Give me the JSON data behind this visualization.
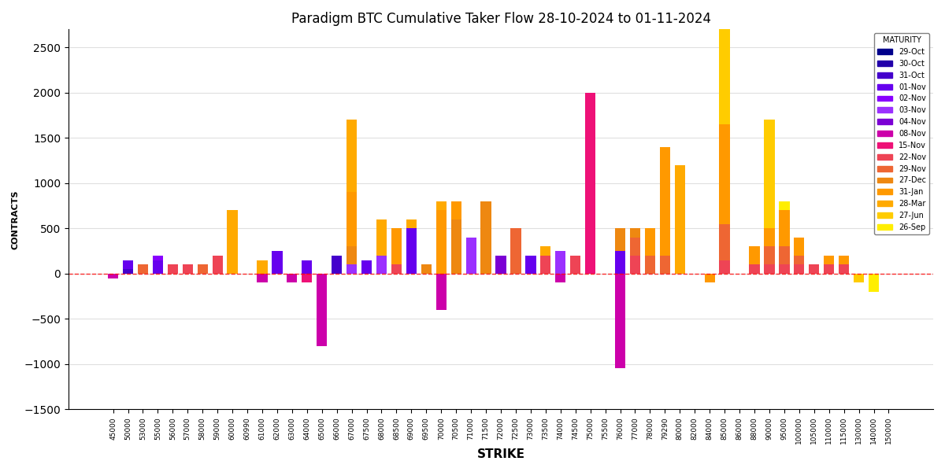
{
  "title": "Paradigm BTC Cumulative Taker Flow 28-10-2024 to 01-11-2024",
  "xlabel": "STRIKE",
  "ylabel": "CONTRACTS",
  "ylim": [
    -1500,
    2700
  ],
  "maturity_colors": {
    "29-Oct": "#00008B",
    "30-Oct": "#2200AA",
    "31-Oct": "#4400CC",
    "01-Nov": "#6600EE",
    "02-Nov": "#8800FF",
    "03-Nov": "#9B30FF",
    "04-Nov": "#7B00D4",
    "08-Nov": "#CC00AA",
    "15-Nov": "#EE1177",
    "22-Nov": "#EE4455",
    "29-Nov": "#EE6633",
    "27-Dec": "#EE8811",
    "31-Jan": "#FF9900",
    "28-Mar": "#FFAA00",
    "27-Jun": "#FFCC00",
    "26-Sep": "#FFEE00"
  },
  "strikes": [
    45000,
    50000,
    53000,
    55000,
    56000,
    57000,
    58000,
    59000,
    60000,
    60990,
    61000,
    62000,
    63000,
    64000,
    65000,
    66000,
    67000,
    67500,
    68000,
    68500,
    69000,
    69500,
    70000,
    70500,
    71000,
    71500,
    72000,
    72500,
    73000,
    73500,
    74000,
    74500,
    75000,
    75500,
    76000,
    77000,
    78000,
    79290,
    80000,
    82000,
    84000,
    85000,
    86000,
    88000,
    90000,
    95000,
    100000,
    105000,
    110000,
    115000,
    130000,
    140000,
    150000
  ],
  "bar_data": {
    "29-Oct": [
      0,
      0,
      0,
      0,
      0,
      0,
      0,
      0,
      0,
      0,
      0,
      0,
      0,
      0,
      0,
      0,
      0,
      0,
      0,
      0,
      0,
      0,
      0,
      0,
      0,
      0,
      0,
      0,
      0,
      0,
      0,
      0,
      0,
      0,
      0,
      0,
      0,
      0,
      0,
      0,
      0,
      0,
      0,
      0,
      0,
      0,
      0,
      0,
      0,
      0,
      0,
      0,
      0
    ],
    "30-Oct": [
      0,
      0,
      0,
      0,
      0,
      0,
      0,
      0,
      0,
      0,
      0,
      0,
      0,
      0,
      0,
      0,
      0,
      0,
      0,
      0,
      0,
      0,
      0,
      0,
      0,
      0,
      0,
      0,
      0,
      0,
      0,
      0,
      0,
      0,
      0,
      0,
      0,
      0,
      0,
      0,
      0,
      0,
      0,
      0,
      0,
      0,
      0,
      0,
      0,
      0,
      0,
      0,
      0
    ],
    "31-Oct": [
      0,
      50,
      0,
      0,
      0,
      0,
      0,
      0,
      0,
      0,
      0,
      0,
      0,
      0,
      0,
      200,
      0,
      0,
      0,
      0,
      0,
      0,
      0,
      0,
      0,
      0,
      0,
      0,
      0,
      0,
      0,
      0,
      0,
      0,
      0,
      0,
      0,
      0,
      0,
      0,
      0,
      0,
      0,
      0,
      0,
      0,
      0,
      0,
      0,
      0,
      0,
      0,
      0
    ],
    "01-Nov": [
      0,
      100,
      0,
      150,
      0,
      0,
      0,
      0,
      0,
      0,
      0,
      250,
      0,
      150,
      0,
      0,
      0,
      150,
      0,
      0,
      500,
      0,
      0,
      0,
      0,
      0,
      0,
      0,
      200,
      0,
      0,
      0,
      0,
      0,
      250,
      0,
      0,
      0,
      0,
      0,
      0,
      0,
      0,
      0,
      0,
      0,
      0,
      0,
      0,
      0,
      0,
      0,
      0
    ],
    "02-Nov": [
      0,
      0,
      0,
      50,
      0,
      0,
      0,
      0,
      0,
      0,
      0,
      0,
      0,
      0,
      0,
      0,
      0,
      0,
      0,
      0,
      0,
      0,
      0,
      0,
      0,
      0,
      0,
      0,
      0,
      0,
      0,
      0,
      0,
      0,
      0,
      0,
      0,
      0,
      0,
      0,
      0,
      0,
      0,
      0,
      0,
      0,
      0,
      0,
      0,
      0,
      0,
      0,
      0
    ],
    "03-Nov": [
      0,
      0,
      0,
      0,
      0,
      0,
      0,
      0,
      0,
      0,
      0,
      0,
      0,
      0,
      0,
      0,
      100,
      0,
      200,
      0,
      0,
      0,
      0,
      0,
      400,
      0,
      0,
      0,
      0,
      0,
      250,
      0,
      0,
      0,
      0,
      0,
      0,
      0,
      0,
      0,
      0,
      0,
      0,
      0,
      0,
      0,
      0,
      0,
      0,
      0,
      0,
      0,
      0
    ],
    "04-Nov": [
      0,
      0,
      0,
      0,
      0,
      0,
      0,
      0,
      0,
      0,
      0,
      0,
      0,
      0,
      0,
      0,
      0,
      0,
      0,
      0,
      0,
      0,
      0,
      0,
      0,
      0,
      200,
      0,
      0,
      0,
      0,
      0,
      0,
      0,
      0,
      0,
      0,
      0,
      0,
      0,
      0,
      0,
      0,
      0,
      0,
      0,
      0,
      0,
      0,
      0,
      0,
      0,
      0
    ],
    "08-Nov": [
      -50,
      0,
      0,
      0,
      0,
      0,
      0,
      0,
      0,
      0,
      -100,
      0,
      -100,
      0,
      -800,
      0,
      0,
      0,
      0,
      0,
      0,
      0,
      -400,
      0,
      0,
      0,
      0,
      0,
      0,
      0,
      -100,
      0,
      0,
      0,
      -1050,
      0,
      0,
      0,
      0,
      0,
      0,
      0,
      0,
      0,
      0,
      0,
      0,
      0,
      0,
      0,
      0,
      0,
      0
    ],
    "15-Nov": [
      0,
      0,
      0,
      0,
      0,
      0,
      0,
      0,
      0,
      0,
      0,
      0,
      0,
      -100,
      0,
      0,
      0,
      0,
      0,
      0,
      0,
      0,
      0,
      0,
      0,
      0,
      0,
      0,
      0,
      0,
      0,
      0,
      2000,
      0,
      0,
      0,
      0,
      0,
      0,
      0,
      0,
      0,
      0,
      0,
      0,
      0,
      0,
      0,
      0,
      0,
      0,
      0,
      0
    ],
    "22-Nov": [
      0,
      0,
      0,
      0,
      100,
      100,
      0,
      200,
      0,
      0,
      0,
      0,
      0,
      0,
      0,
      0,
      0,
      0,
      0,
      100,
      0,
      0,
      0,
      0,
      0,
      0,
      0,
      0,
      0,
      200,
      0,
      200,
      0,
      0,
      0,
      200,
      0,
      0,
      0,
      0,
      0,
      150,
      0,
      100,
      100,
      100,
      100,
      100,
      100,
      100,
      0,
      0,
      0
    ],
    "29-Nov": [
      0,
      0,
      100,
      0,
      0,
      0,
      100,
      0,
      0,
      0,
      0,
      0,
      0,
      0,
      0,
      0,
      0,
      0,
      0,
      0,
      0,
      0,
      0,
      0,
      0,
      0,
      0,
      500,
      0,
      0,
      0,
      0,
      0,
      0,
      0,
      200,
      200,
      200,
      0,
      0,
      0,
      400,
      0,
      0,
      200,
      200,
      100,
      0,
      0,
      0,
      0,
      0,
      0
    ],
    "27-Dec": [
      0,
      0,
      0,
      0,
      0,
      0,
      0,
      0,
      0,
      0,
      0,
      0,
      0,
      0,
      0,
      0,
      200,
      0,
      0,
      0,
      0,
      100,
      0,
      600,
      0,
      800,
      0,
      0,
      0,
      0,
      0,
      0,
      0,
      0,
      250,
      100,
      0,
      0,
      0,
      0,
      0,
      0,
      0,
      0,
      0,
      0,
      0,
      0,
      0,
      0,
      0,
      0,
      0
    ],
    "31-Jan": [
      0,
      0,
      0,
      0,
      0,
      0,
      0,
      0,
      0,
      0,
      0,
      0,
      0,
      0,
      0,
      0,
      600,
      0,
      0,
      400,
      0,
      0,
      700,
      200,
      0,
      0,
      0,
      0,
      0,
      0,
      0,
      0,
      0,
      0,
      0,
      0,
      300,
      1200,
      0,
      0,
      -100,
      1100,
      0,
      200,
      200,
      400,
      200,
      0,
      100,
      100,
      0,
      0,
      0
    ],
    "28-Mar": [
      0,
      0,
      0,
      0,
      0,
      0,
      0,
      0,
      700,
      0,
      150,
      0,
      0,
      0,
      0,
      0,
      800,
      0,
      400,
      0,
      100,
      0,
      100,
      0,
      0,
      0,
      0,
      0,
      0,
      100,
      0,
      0,
      0,
      0,
      0,
      0,
      0,
      0,
      1200,
      0,
      0,
      0,
      0,
      0,
      0,
      0,
      0,
      0,
      0,
      0,
      0,
      0,
      0
    ],
    "27-Jun": [
      0,
      0,
      0,
      0,
      0,
      0,
      0,
      0,
      0,
      0,
      0,
      0,
      0,
      0,
      0,
      0,
      0,
      0,
      0,
      0,
      0,
      0,
      0,
      0,
      0,
      0,
      0,
      0,
      0,
      0,
      0,
      0,
      0,
      0,
      0,
      0,
      0,
      0,
      0,
      0,
      0,
      2600,
      0,
      0,
      1200,
      0,
      0,
      0,
      0,
      0,
      -100,
      0,
      0
    ],
    "26-Sep": [
      0,
      0,
      0,
      0,
      0,
      0,
      0,
      0,
      0,
      0,
      0,
      0,
      0,
      0,
      0,
      0,
      0,
      0,
      0,
      0,
      0,
      0,
      0,
      0,
      0,
      0,
      0,
      0,
      0,
      0,
      0,
      0,
      0,
      0,
      0,
      0,
      0,
      0,
      0,
      0,
      0,
      0,
      0,
      0,
      0,
      100,
      0,
      0,
      0,
      0,
      0,
      -200,
      0
    ]
  }
}
